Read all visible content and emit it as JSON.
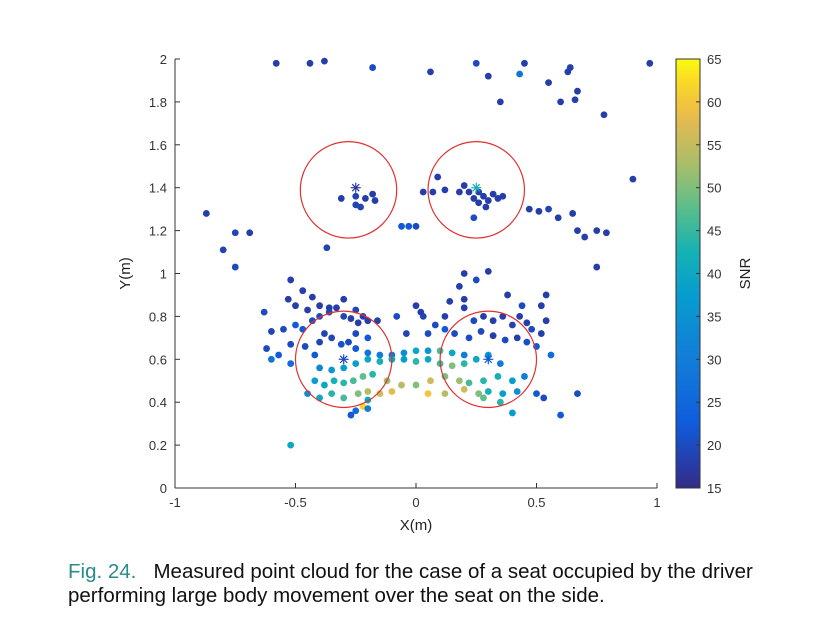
{
  "caption": {
    "label": "Fig. 24.",
    "text": "Measured point cloud for the case of a seat occupied by the driver performing large body movement over the seat on the side."
  },
  "chart_data": {
    "type": "scatter",
    "xlabel": "X(m)",
    "ylabel": "Y(m)",
    "xlim": [
      -1,
      1
    ],
    "ylim": [
      0,
      2
    ],
    "xticks": [
      -1,
      -0.5,
      0,
      0.5,
      1
    ],
    "xtick_labels": [
      "-1",
      "-0.5",
      "0",
      "0.5",
      "1"
    ],
    "yticks": [
      0,
      0.2,
      0.4,
      0.6,
      0.8,
      1,
      1.2,
      1.4,
      1.6,
      1.8,
      2
    ],
    "ytick_labels": [
      "0",
      "0.2",
      "0.4",
      "0.6",
      "0.8",
      "1",
      "1.2",
      "1.4",
      "1.6",
      "1.8",
      "2"
    ],
    "grid": false,
    "colorbar": {
      "label": "SNR",
      "range": [
        15,
        65
      ],
      "ticks": [
        15,
        20,
        25,
        30,
        35,
        40,
        45,
        50,
        55,
        60,
        65
      ],
      "tick_labels": [
        "15",
        "20",
        "25",
        "30",
        "35",
        "40",
        "45",
        "50",
        "55",
        "60",
        "65"
      ],
      "colormap": "parula"
    },
    "circles": [
      {
        "cx": -0.28,
        "cy": 1.39,
        "r": 0.2
      },
      {
        "cx": 0.25,
        "cy": 1.39,
        "r": 0.2
      },
      {
        "cx": -0.3,
        "cy": 0.6,
        "r": 0.2
      },
      {
        "cx": 0.3,
        "cy": 0.6,
        "r": 0.2
      }
    ],
    "markers": [
      {
        "x": -0.25,
        "y": 1.4,
        "snr": 17
      },
      {
        "x": 0.25,
        "y": 1.4,
        "snr": 42
      },
      {
        "x": -0.3,
        "y": 0.6,
        "snr": 20
      },
      {
        "x": 0.3,
        "y": 0.6,
        "snr": 22
      }
    ],
    "points": [
      [
        -0.58,
        1.98,
        18
      ],
      [
        -0.44,
        1.98,
        18
      ],
      [
        -0.38,
        1.99,
        18
      ],
      [
        -0.18,
        1.96,
        20
      ],
      [
        0.06,
        1.94,
        18
      ],
      [
        0.25,
        1.98,
        20
      ],
      [
        0.3,
        1.92,
        18
      ],
      [
        0.45,
        1.98,
        18
      ],
      [
        0.43,
        1.93,
        28
      ],
      [
        0.55,
        1.89,
        18
      ],
      [
        0.64,
        1.96,
        18
      ],
      [
        0.63,
        1.94,
        18
      ],
      [
        0.6,
        1.8,
        18
      ],
      [
        0.67,
        1.85,
        18
      ],
      [
        0.66,
        1.81,
        18
      ],
      [
        0.78,
        1.74,
        18
      ],
      [
        0.97,
        1.98,
        18
      ],
      [
        0.35,
        1.8,
        18
      ],
      [
        -0.87,
        1.28,
        18
      ],
      [
        -0.75,
        1.19,
        19
      ],
      [
        -0.69,
        1.19,
        18
      ],
      [
        -0.8,
        1.11,
        19
      ],
      [
        -0.75,
        1.03,
        20
      ],
      [
        -0.37,
        1.12,
        19
      ],
      [
        -0.25,
        1.36,
        19
      ],
      [
        -0.25,
        1.32,
        19
      ],
      [
        -0.21,
        1.35,
        18
      ],
      [
        -0.18,
        1.37,
        18
      ],
      [
        -0.31,
        1.35,
        18
      ],
      [
        -0.23,
        1.31,
        19
      ],
      [
        -0.17,
        1.34,
        18
      ],
      [
        0.03,
        1.38,
        18
      ],
      [
        0.07,
        1.38,
        18
      ],
      [
        0.09,
        1.45,
        18
      ],
      [
        0.12,
        1.39,
        18
      ],
      [
        -0.06,
        1.22,
        22
      ],
      [
        -0.03,
        1.22,
        22
      ],
      [
        0.0,
        1.22,
        20
      ],
      [
        0.18,
        1.38,
        18
      ],
      [
        0.22,
        1.38,
        18
      ],
      [
        0.24,
        1.35,
        18
      ],
      [
        0.26,
        1.38,
        18
      ],
      [
        0.28,
        1.36,
        18
      ],
      [
        0.3,
        1.34,
        18
      ],
      [
        0.32,
        1.37,
        18
      ],
      [
        0.34,
        1.35,
        18
      ],
      [
        0.36,
        1.36,
        18
      ],
      [
        0.26,
        1.33,
        18
      ],
      [
        0.29,
        1.31,
        18
      ],
      [
        0.24,
        1.26,
        20
      ],
      [
        0.2,
        1.41,
        18
      ],
      [
        0.47,
        1.3,
        18
      ],
      [
        0.51,
        1.29,
        18
      ],
      [
        0.55,
        1.3,
        19
      ],
      [
        0.59,
        1.26,
        18
      ],
      [
        0.65,
        1.28,
        18
      ],
      [
        0.67,
        1.2,
        18
      ],
      [
        0.7,
        1.17,
        18
      ],
      [
        0.75,
        1.2,
        18
      ],
      [
        0.79,
        1.19,
        18
      ],
      [
        0.9,
        1.44,
        18
      ],
      [
        0.75,
        1.03,
        18
      ],
      [
        -0.52,
        0.97,
        18
      ],
      [
        -0.47,
        0.92,
        18
      ],
      [
        -0.43,
        0.89,
        18
      ],
      [
        -0.4,
        0.85,
        18
      ],
      [
        -0.36,
        0.84,
        18
      ],
      [
        -0.3,
        0.88,
        18
      ],
      [
        -0.53,
        0.88,
        18
      ],
      [
        -0.5,
        0.85,
        18
      ],
      [
        -0.45,
        0.83,
        18
      ],
      [
        -0.25,
        0.83,
        19
      ],
      [
        -0.22,
        0.8,
        18
      ],
      [
        -0.2,
        0.78,
        18
      ],
      [
        -0.16,
        0.78,
        18
      ],
      [
        -0.63,
        0.82,
        20
      ],
      [
        -0.6,
        0.73,
        19
      ],
      [
        -0.55,
        0.74,
        20
      ],
      [
        -0.5,
        0.76,
        22
      ],
      [
        -0.47,
        0.74,
        22
      ],
      [
        -0.43,
        0.78,
        20
      ],
      [
        -0.4,
        0.8,
        20
      ],
      [
        -0.36,
        0.82,
        19
      ],
      [
        -0.33,
        0.84,
        18
      ],
      [
        -0.3,
        0.8,
        19
      ],
      [
        -0.27,
        0.79,
        18
      ],
      [
        -0.24,
        0.77,
        18
      ],
      [
        -0.62,
        0.65,
        20
      ],
      [
        -0.6,
        0.6,
        28
      ],
      [
        -0.57,
        0.62,
        22
      ],
      [
        -0.52,
        0.58,
        26
      ],
      [
        -0.52,
        0.67,
        20
      ],
      [
        -0.46,
        0.66,
        20
      ],
      [
        -0.42,
        0.62,
        22
      ],
      [
        -0.4,
        0.68,
        19
      ],
      [
        -0.38,
        0.72,
        19
      ],
      [
        -0.35,
        0.7,
        19
      ],
      [
        -0.31,
        0.67,
        21
      ],
      [
        -0.25,
        0.65,
        22
      ],
      [
        -0.2,
        0.63,
        28
      ],
      [
        -0.15,
        0.62,
        30
      ],
      [
        -0.1,
        0.62,
        28
      ],
      [
        -0.05,
        0.63,
        34
      ],
      [
        0.0,
        0.64,
        40
      ],
      [
        0.05,
        0.64,
        36
      ],
      [
        0.1,
        0.64,
        46
      ],
      [
        0.15,
        0.63,
        40
      ],
      [
        0.2,
        0.62,
        30
      ],
      [
        -0.4,
        0.56,
        32
      ],
      [
        -0.35,
        0.55,
        36
      ],
      [
        -0.3,
        0.56,
        38
      ],
      [
        -0.25,
        0.58,
        38
      ],
      [
        -0.2,
        0.6,
        40
      ],
      [
        -0.15,
        0.59,
        42
      ],
      [
        -0.1,
        0.6,
        40
      ],
      [
        -0.05,
        0.6,
        38
      ],
      [
        0.0,
        0.59,
        44
      ],
      [
        0.05,
        0.6,
        40
      ],
      [
        0.1,
        0.58,
        46
      ],
      [
        0.15,
        0.57,
        50
      ],
      [
        0.2,
        0.58,
        44
      ],
      [
        0.25,
        0.6,
        40
      ],
      [
        0.3,
        0.62,
        36
      ],
      [
        0.35,
        0.58,
        30
      ],
      [
        -0.42,
        0.5,
        38
      ],
      [
        -0.38,
        0.48,
        40
      ],
      [
        -0.34,
        0.5,
        42
      ],
      [
        -0.3,
        0.49,
        44
      ],
      [
        -0.26,
        0.5,
        46
      ],
      [
        -0.22,
        0.52,
        48
      ],
      [
        -0.18,
        0.53,
        44
      ],
      [
        -0.12,
        0.5,
        52
      ],
      [
        -0.06,
        0.48,
        54
      ],
      [
        0.0,
        0.48,
        50
      ],
      [
        0.06,
        0.5,
        56
      ],
      [
        0.12,
        0.52,
        50
      ],
      [
        0.18,
        0.5,
        52
      ],
      [
        0.22,
        0.49,
        46
      ],
      [
        0.28,
        0.5,
        44
      ],
      [
        0.34,
        0.52,
        42
      ],
      [
        0.4,
        0.5,
        38
      ],
      [
        0.45,
        0.52,
        30
      ],
      [
        -0.45,
        0.44,
        34
      ],
      [
        -0.4,
        0.42,
        40
      ],
      [
        -0.35,
        0.44,
        44
      ],
      [
        -0.3,
        0.42,
        46
      ],
      [
        -0.24,
        0.44,
        50
      ],
      [
        -0.2,
        0.45,
        54
      ],
      [
        -0.15,
        0.44,
        56
      ],
      [
        -0.1,
        0.45,
        58
      ],
      [
        0.05,
        0.44,
        60
      ],
      [
        0.12,
        0.44,
        54
      ],
      [
        0.2,
        0.46,
        56
      ],
      [
        0.26,
        0.44,
        50
      ],
      [
        0.3,
        0.45,
        42
      ],
      [
        0.36,
        0.44,
        38
      ],
      [
        0.42,
        0.45,
        34
      ],
      [
        0.5,
        0.44,
        22
      ],
      [
        -0.22,
        0.38,
        62
      ],
      [
        -0.2,
        0.37,
        30
      ],
      [
        -0.25,
        0.36,
        26
      ],
      [
        -0.27,
        0.34,
        22
      ],
      [
        -0.2,
        0.41,
        40
      ],
      [
        0.28,
        0.42,
        48
      ],
      [
        0.35,
        0.4,
        44
      ],
      [
        0.4,
        0.35,
        38
      ],
      [
        0.53,
        0.42,
        20
      ],
      [
        0.6,
        0.34,
        22
      ],
      [
        0.67,
        0.44,
        20
      ],
      [
        -0.52,
        0.2,
        40
      ],
      [
        -0.28,
        0.68,
        20
      ],
      [
        -0.25,
        0.72,
        20
      ],
      [
        -0.2,
        0.7,
        22
      ],
      [
        0.12,
        0.74,
        22
      ],
      [
        0.16,
        0.72,
        20
      ],
      [
        0.22,
        0.7,
        20
      ],
      [
        0.27,
        0.73,
        20
      ],
      [
        0.32,
        0.71,
        18
      ],
      [
        0.37,
        0.69,
        20
      ],
      [
        0.42,
        0.7,
        18
      ],
      [
        0.46,
        0.68,
        20
      ],
      [
        0.5,
        0.66,
        22
      ],
      [
        0.56,
        0.62,
        26
      ],
      [
        0.24,
        0.78,
        20
      ],
      [
        0.28,
        0.8,
        18
      ],
      [
        0.32,
        0.78,
        18
      ],
      [
        0.36,
        0.8,
        18
      ],
      [
        0.4,
        0.76,
        19
      ],
      [
        0.43,
        0.8,
        18
      ],
      [
        0.46,
        0.77,
        18
      ],
      [
        0.48,
        0.74,
        20
      ],
      [
        0.52,
        0.72,
        18
      ],
      [
        0.54,
        0.78,
        18
      ],
      [
        0.52,
        0.85,
        18
      ],
      [
        0.44,
        0.85,
        20
      ],
      [
        0.38,
        0.9,
        18
      ],
      [
        0.54,
        0.9,
        18
      ],
      [
        0.2,
        0.84,
        18
      ],
      [
        0.14,
        0.87,
        18
      ],
      [
        0.12,
        0.8,
        18
      ],
      [
        0.08,
        0.76,
        20
      ],
      [
        0.05,
        0.72,
        20
      ],
      [
        0.02,
        0.82,
        18
      ],
      [
        0.0,
        0.85,
        18
      ],
      [
        0.03,
        0.8,
        19
      ],
      [
        -0.04,
        0.72,
        19
      ],
      [
        -0.08,
        0.8,
        20
      ],
      [
        0.2,
        1.0,
        18
      ],
      [
        0.3,
        1.01,
        18
      ],
      [
        0.25,
        0.97,
        20
      ],
      [
        0.18,
        0.94,
        18
      ],
      [
        0.2,
        0.88,
        18
      ]
    ]
  }
}
